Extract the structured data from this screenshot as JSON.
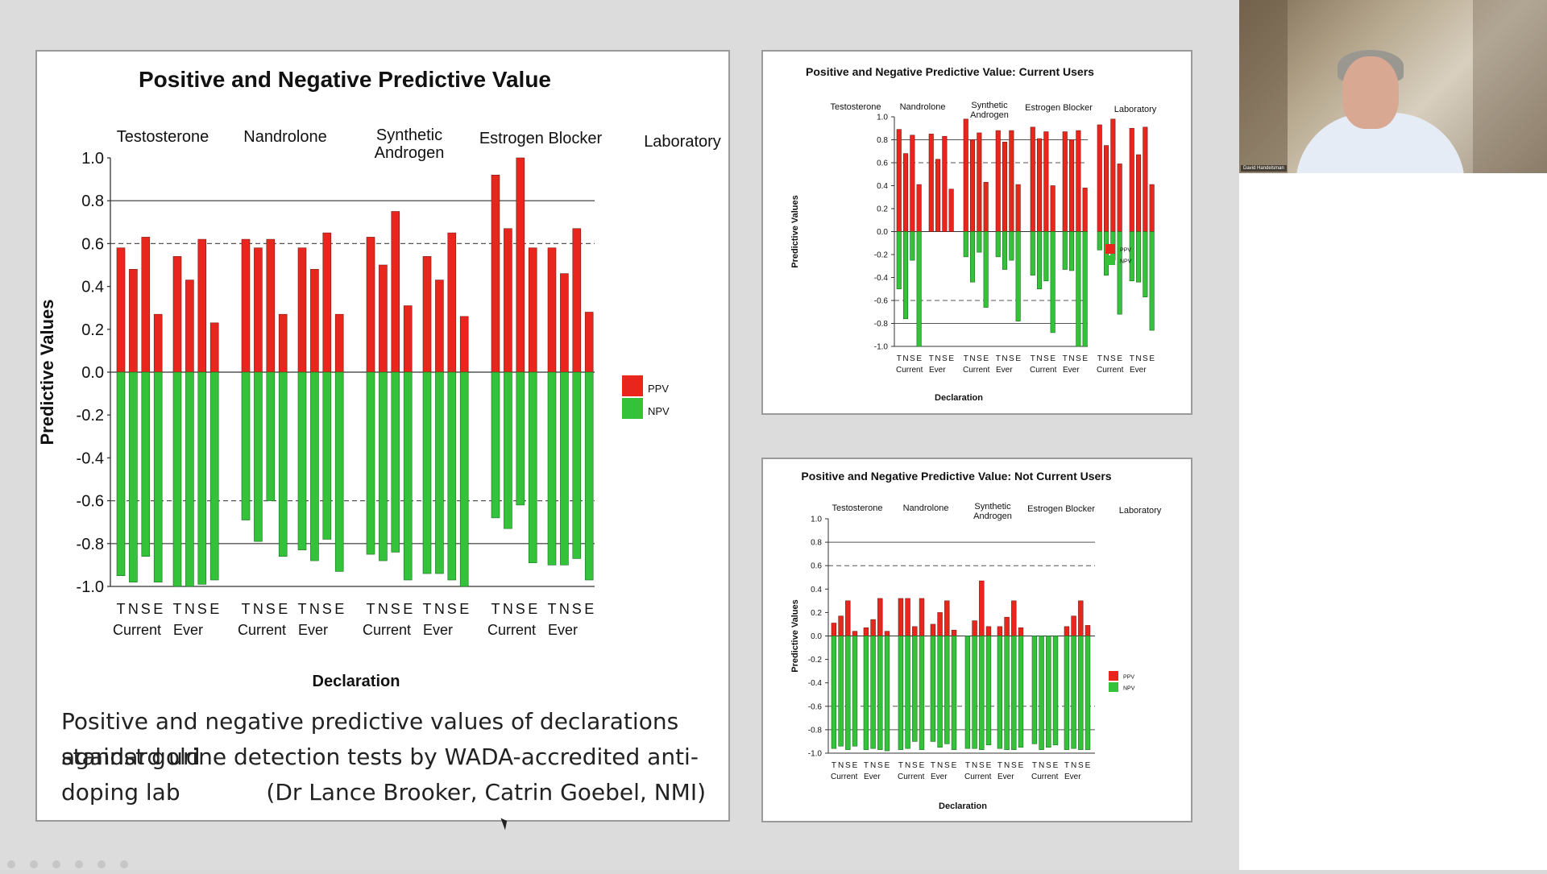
{
  "colors": {
    "ppv": "#e8261e",
    "npv": "#33c23a",
    "bg": "#dcdcdc"
  },
  "caption": {
    "line1": "Positive and negative predictive values of declarations against gold",
    "line2": "standard urine detection tests by WADA-accredited anti-doping lab",
    "line3": "(Dr Lance Brooker, Catrin Goebel, NMI)"
  },
  "webcam": {
    "name": "David Handelsman"
  },
  "chart_data": [
    {
      "type": "bar",
      "title": "Positive and Negative Predictive Value",
      "ylabel": "Predictive Values",
      "xlabel": "Declaration",
      "ylim": [
        -1.0,
        1.0
      ],
      "yticks": [
        "1.0",
        "0.8",
        "0.6",
        "0.4",
        "0.2",
        "0.0",
        "-0.2",
        "-0.4",
        "-0.6",
        "-0.8",
        "-1.0"
      ],
      "groups": [
        {
          "label": "Testosterone"
        },
        {
          "label": "Nandrolone"
        },
        {
          "label": "Synthetic Androgen"
        },
        {
          "label": "Estrogen Blocker"
        },
        {
          "label": "Laboratory"
        }
      ],
      "bar_letters": [
        "T",
        "N",
        "S",
        "E"
      ],
      "subgroups": [
        "Current",
        "Ever"
      ],
      "legend": [
        "PPV",
        "NPV"
      ],
      "series": [
        {
          "name": "PPV",
          "values": [
            0.58,
            0.48,
            0.63,
            0.27,
            0.54,
            0.43,
            0.62,
            0.23,
            0.62,
            0.58,
            0.62,
            0.27,
            0.58,
            0.48,
            0.65,
            0.27,
            0.63,
            0.5,
            0.75,
            0.31,
            0.54,
            0.43,
            0.65,
            0.26,
            0.92,
            0.67,
            1.0,
            0.58,
            0.58,
            0.46,
            0.67,
            0.28
          ]
        },
        {
          "name": "NPV",
          "values": [
            -0.95,
            -0.98,
            -0.86,
            -0.98,
            -1.0,
            -1.0,
            -0.99,
            -0.97,
            -0.69,
            -0.79,
            -0.6,
            -0.86,
            -0.83,
            -0.88,
            -0.78,
            -0.93,
            -0.85,
            -0.88,
            -0.84,
            -0.97,
            -0.94,
            -0.94,
            -0.97,
            -1.0,
            -0.68,
            -0.73,
            -0.62,
            -0.89,
            -0.9,
            -0.9,
            -0.87,
            -0.97
          ]
        }
      ]
    },
    {
      "type": "bar",
      "title": "Positive and Negative Predictive Value: Current Users",
      "ylabel": "Predictive Values",
      "xlabel": "Declaration",
      "ylim": [
        -1.0,
        1.0
      ],
      "yticks": [
        "1.0",
        "0.8",
        "0.6",
        "0.4",
        "0.2",
        "0.0",
        "-0.2",
        "-0.4",
        "-0.6",
        "-0.8",
        "-1.0"
      ],
      "groups": [
        {
          "label": "Testosterone"
        },
        {
          "label": "Nandrolone"
        },
        {
          "label": "Synthetic Androgen"
        },
        {
          "label": "Estrogen Blocker"
        },
        {
          "label": "Laboratory"
        }
      ],
      "bar_letters": [
        "T",
        "N",
        "S",
        "E"
      ],
      "subgroups": [
        "Current",
        "Ever"
      ],
      "legend": [
        "PPV",
        "NPV"
      ],
      "series": [
        {
          "name": "PPV",
          "values": [
            0.89,
            0.68,
            0.84,
            0.41,
            0.85,
            0.63,
            0.83,
            0.37,
            0.98,
            0.8,
            0.86,
            0.43,
            0.88,
            0.78,
            0.88,
            0.41,
            0.91,
            0.81,
            0.87,
            0.4,
            0.87,
            0.8,
            0.88,
            0.38,
            0.93,
            0.75,
            0.98,
            0.59,
            0.9,
            0.67,
            0.91,
            0.41
          ]
        },
        {
          "name": "NPV",
          "values": [
            -0.5,
            -0.76,
            -0.25,
            -1.0,
            0,
            0,
            0,
            0,
            -0.22,
            -0.44,
            -0.18,
            -0.66,
            -0.22,
            -0.33,
            -0.25,
            -0.78,
            -0.38,
            -0.5,
            -0.43,
            -0.88,
            -0.33,
            -0.34,
            -1.0,
            -1.0,
            -0.16,
            -0.38,
            -0.25,
            -0.72,
            -0.43,
            -0.44,
            -0.57,
            -0.86
          ]
        }
      ]
    },
    {
      "type": "bar",
      "title": "Positive and Negative Predictive Value: Not Current Users",
      "ylabel": "Predictive Values",
      "xlabel": "Declaration",
      "ylim": [
        -1.0,
        1.0
      ],
      "yticks": [
        "1.0",
        "0.8",
        "0.6",
        "0.4",
        "0.2",
        "0.0",
        "-0.2",
        "-0.4",
        "-0.6",
        "-0.8",
        "-1.0"
      ],
      "groups": [
        {
          "label": "Testosterone"
        },
        {
          "label": "Nandrolone"
        },
        {
          "label": "Synthetic Androgen"
        },
        {
          "label": "Estrogen Blocker"
        },
        {
          "label": "Laboratory"
        }
      ],
      "bar_letters": [
        "T",
        "N",
        "S",
        "E"
      ],
      "subgroups": [
        "Current",
        "Ever"
      ],
      "legend": [
        "PPV",
        "NPV"
      ],
      "series": [
        {
          "name": "PPV",
          "values": [
            0.11,
            0.17,
            0.3,
            0.04,
            0.07,
            0.14,
            0.32,
            0.04,
            0.32,
            0.32,
            0.08,
            0.32,
            0.1,
            0.2,
            0.3,
            0.05,
            0.0,
            0.13,
            0.47,
            0.08,
            0.08,
            0.16,
            0.3,
            0.07,
            0.0,
            0.0,
            0.0,
            0.0,
            0.08,
            0.17,
            0.3,
            0.09
          ]
        },
        {
          "name": "NPV",
          "values": [
            -0.96,
            -0.94,
            -0.97,
            -0.94,
            -0.97,
            -0.96,
            -0.97,
            -0.98,
            -0.97,
            -0.96,
            -0.9,
            -0.97,
            -0.9,
            -0.95,
            -0.92,
            -0.97,
            -0.96,
            -0.96,
            -0.97,
            -0.93,
            -0.96,
            -0.97,
            -0.97,
            -0.95,
            -0.92,
            -0.97,
            -0.95,
            -0.93,
            -0.97,
            -0.96,
            -0.97,
            -0.97
          ]
        }
      ]
    }
  ]
}
